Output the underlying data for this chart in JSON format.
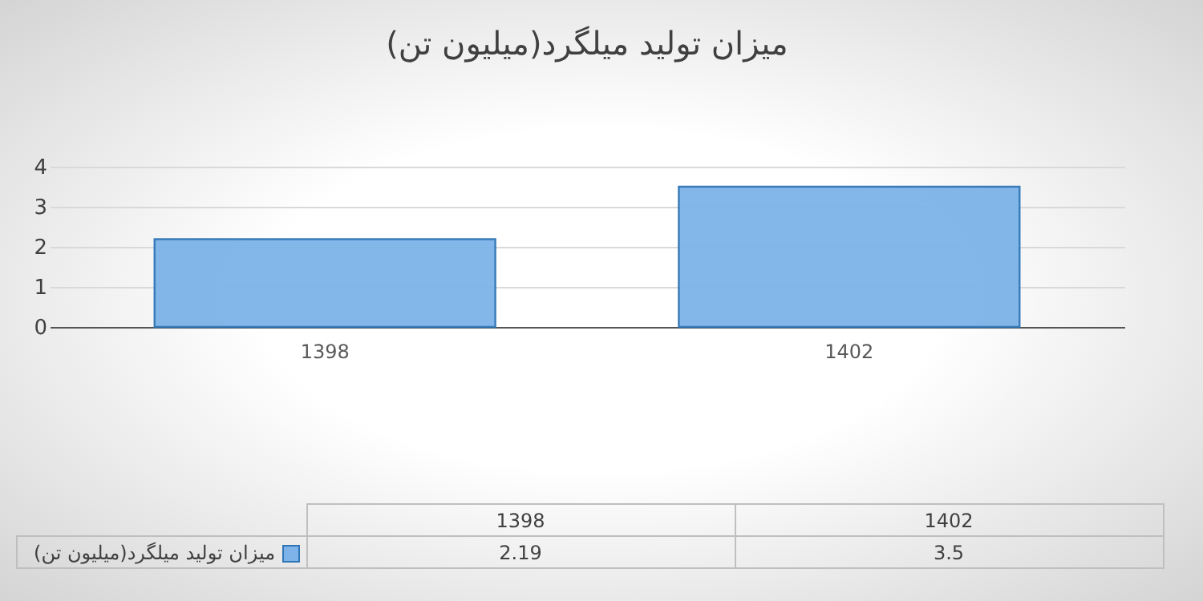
{
  "chart_data": {
    "type": "bar",
    "title": "میزان تولید میلگرد(میلیون تن)",
    "categories": [
      "1398",
      "1402"
    ],
    "series": [
      {
        "name": "میزان تولید میلگرد(میلیون تن)",
        "color": "#7db3e8",
        "values": [
          2.19,
          3.5
        ]
      }
    ],
    "ylim": [
      0,
      4
    ],
    "yticks": [
      0,
      1,
      2,
      3,
      4
    ],
    "grid": "y",
    "legend": "bottom",
    "data_labels": true
  }
}
